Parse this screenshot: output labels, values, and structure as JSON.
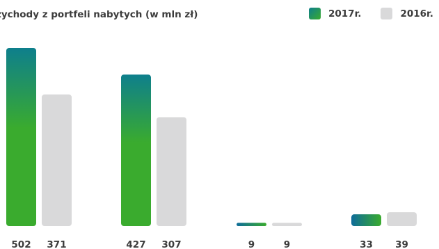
{
  "chart_data": {
    "type": "bar",
    "title": "zychody z portfeli nabytych (w mln zł)",
    "categories": [
      "",
      "",
      "",
      ""
    ],
    "series": [
      {
        "name": "2017r.",
        "values": [
          502,
          427,
          9,
          33
        ],
        "color": "#0e8a83"
      },
      {
        "name": "2016r.",
        "values": [
          371,
          307,
          9,
          39
        ],
        "color": "#d9d9da"
      }
    ],
    "data_labels": [
      [
        "502",
        "371"
      ],
      [
        "427",
        "307"
      ],
      [
        "9",
        "9"
      ],
      [
        "33",
        "39"
      ]
    ],
    "ylim": [
      0,
      502
    ],
    "legend_position": "top-right",
    "gradient_2017": [
      "#0e7f8c",
      "#3aab2e"
    ]
  }
}
